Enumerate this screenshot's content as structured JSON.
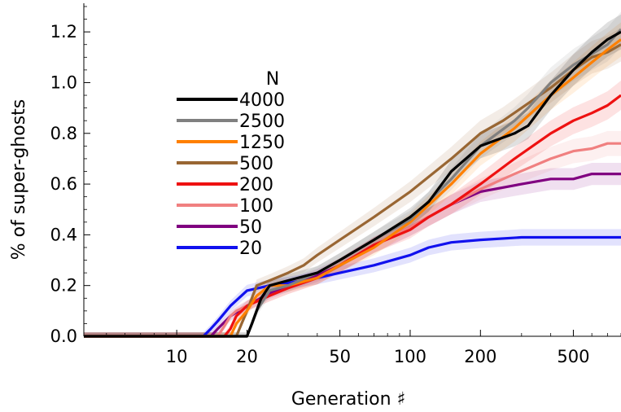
{
  "chart_data": {
    "type": "line",
    "xlabel": "Generation ♯",
    "ylabel": "% of super-ghosts",
    "x_scale": "log",
    "xlim": [
      4,
      800
    ],
    "ylim": [
      0,
      1.3
    ],
    "x_major_ticks": [
      10,
      20,
      50,
      100,
      200,
      500
    ],
    "x_tick_labels": [
      "10",
      "20",
      "50",
      "100",
      "200",
      "500"
    ],
    "y_ticks": [
      0,
      0.2,
      0.4,
      0.6,
      0.8,
      1.0,
      1.2
    ],
    "y_tick_labels": [
      "0.0",
      "0.2",
      "0.4",
      "0.6",
      "0.8",
      "1.0",
      "1.2"
    ],
    "legend_title": "N",
    "legend_position": "upper-left",
    "grid": false,
    "series": [
      {
        "name": "4000",
        "color": "#000000",
        "x": [
          4,
          20,
          21,
          23,
          25,
          30,
          40,
          50,
          70,
          100,
          120,
          150,
          200,
          280,
          320,
          400,
          500,
          600,
          700,
          800
        ],
        "y": [
          0,
          0,
          0.05,
          0.15,
          0.2,
          0.22,
          0.25,
          0.3,
          0.38,
          0.47,
          0.53,
          0.65,
          0.75,
          0.8,
          0.83,
          0.95,
          1.05,
          1.12,
          1.17,
          1.2
        ]
      },
      {
        "name": "2500",
        "color": "#808080",
        "x": [
          4,
          20,
          22,
          25,
          30,
          40,
          50,
          70,
          100,
          150,
          200,
          280,
          320,
          400,
          500,
          700,
          800
        ],
        "y": [
          0,
          0,
          0.1,
          0.18,
          0.2,
          0.25,
          0.3,
          0.38,
          0.46,
          0.62,
          0.75,
          0.85,
          0.9,
          1.0,
          1.07,
          1.15,
          1.21
        ]
      },
      {
        "name": "1250",
        "color": "#ff8000",
        "x": [
          4,
          17,
          18,
          20,
          22,
          25,
          30,
          40,
          50,
          70,
          100,
          150,
          200,
          280,
          400,
          500,
          600,
          700,
          800
        ],
        "y": [
          0,
          0,
          0.05,
          0.1,
          0.16,
          0.2,
          0.2,
          0.23,
          0.28,
          0.35,
          0.45,
          0.6,
          0.72,
          0.82,
          0.95,
          1.02,
          1.08,
          1.13,
          1.17
        ]
      },
      {
        "name": "500",
        "color": "#996633",
        "x": [
          4,
          18,
          20,
          22,
          25,
          30,
          35,
          40,
          50,
          70,
          100,
          150,
          200,
          250,
          300,
          400,
          500,
          600,
          700,
          800
        ],
        "y": [
          0,
          0,
          0.1,
          0.2,
          0.22,
          0.25,
          0.28,
          0.32,
          0.38,
          0.47,
          0.57,
          0.7,
          0.8,
          0.85,
          0.9,
          0.98,
          1.05,
          1.1,
          1.12,
          1.15
        ]
      },
      {
        "name": "200",
        "color": "#ee1111",
        "x": [
          4,
          16,
          17,
          18,
          20,
          25,
          30,
          40,
          50,
          70,
          100,
          120,
          150,
          200,
          280,
          400,
          500,
          600,
          700,
          800
        ],
        "y": [
          0,
          0,
          0.03,
          0.08,
          0.12,
          0.16,
          0.19,
          0.23,
          0.28,
          0.36,
          0.42,
          0.47,
          0.52,
          0.6,
          0.7,
          0.8,
          0.85,
          0.88,
          0.91,
          0.95
        ]
      },
      {
        "name": "100",
        "color": "#f08080",
        "x": [
          4,
          15,
          16,
          17,
          18,
          20,
          25,
          30,
          40,
          50,
          70,
          100,
          150,
          200,
          280,
          400,
          500,
          600,
          700,
          800
        ],
        "y": [
          0,
          0,
          0.04,
          0.08,
          0.1,
          0.12,
          0.16,
          0.19,
          0.23,
          0.28,
          0.36,
          0.43,
          0.52,
          0.58,
          0.64,
          0.7,
          0.73,
          0.74,
          0.76,
          0.76
        ]
      },
      {
        "name": "50",
        "color": "#800080",
        "x": [
          4,
          14,
          15,
          17,
          20,
          25,
          30,
          40,
          50,
          70,
          100,
          150,
          200,
          300,
          400,
          500,
          600,
          800
        ],
        "y": [
          0,
          0,
          0.03,
          0.08,
          0.12,
          0.17,
          0.2,
          0.24,
          0.28,
          0.36,
          0.43,
          0.52,
          0.57,
          0.6,
          0.62,
          0.62,
          0.64,
          0.64
        ]
      },
      {
        "name": "20",
        "color": "#1111ee",
        "x": [
          4,
          13,
          14,
          15,
          17,
          20,
          25,
          30,
          40,
          50,
          70,
          100,
          120,
          150,
          200,
          300,
          500,
          800
        ],
        "y": [
          0,
          0,
          0.03,
          0.06,
          0.12,
          0.18,
          0.2,
          0.21,
          0.23,
          0.25,
          0.28,
          0.32,
          0.35,
          0.37,
          0.38,
          0.39,
          0.39,
          0.39
        ]
      }
    ]
  }
}
